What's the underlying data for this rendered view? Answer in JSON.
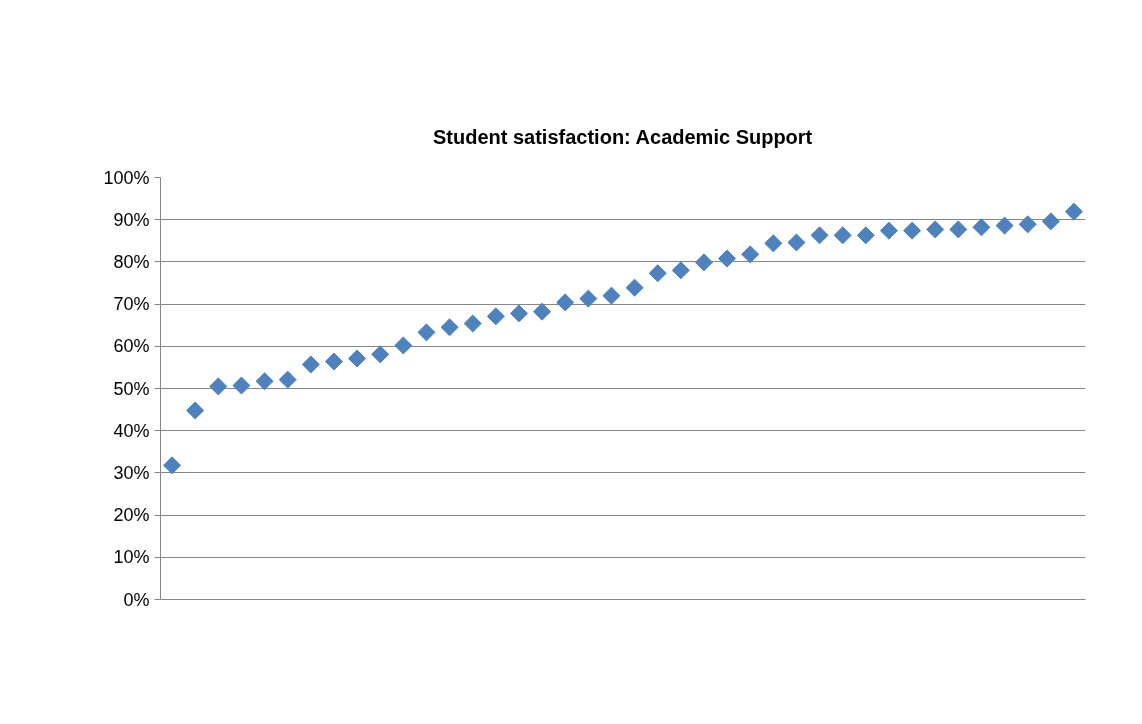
{
  "chart_data": {
    "type": "scatter",
    "title": "Student satisfaction: Academic Support",
    "categories": [
      null,
      null,
      null,
      null,
      null,
      null,
      null,
      null,
      null,
      null,
      null,
      null,
      null,
      null,
      null,
      null,
      null,
      null,
      null,
      null,
      null,
      null,
      null,
      null,
      null,
      null,
      null,
      null,
      null,
      null,
      null,
      null,
      null,
      null,
      null,
      null,
      null,
      null,
      null,
      null
    ],
    "series": [
      {
        "color": "#4f81bd",
        "values": [
          31.8,
          44.8,
          50.5,
          50.7,
          51.7,
          52.1,
          55.7,
          56.4,
          57.1,
          58.1,
          60.2,
          63.3,
          64.5,
          65.4,
          67.1,
          67.8,
          68.2,
          70.4,
          71.3,
          72.0,
          73.9,
          77.3,
          78.0,
          79.9,
          80.8,
          81.8,
          84.4,
          84.6,
          86.3,
          86.3,
          86.3,
          87.4,
          87.4,
          87.7,
          87.7,
          88.2,
          88.6,
          88.9,
          89.6,
          91.9
        ]
      }
    ],
    "ylim": [
      0,
      100
    ],
    "yticks": [
      {
        "value": 0,
        "label": "0%"
      },
      {
        "value": 10,
        "label": "10%"
      },
      {
        "value": 20,
        "label": "20%"
      },
      {
        "value": 30,
        "label": "30%"
      },
      {
        "value": 40,
        "label": "40%"
      },
      {
        "value": 50,
        "label": "50%"
      },
      {
        "value": 60,
        "label": "60%"
      },
      {
        "value": 70,
        "label": "70%"
      },
      {
        "value": 80,
        "label": "80%"
      },
      {
        "value": 90,
        "label": "90%"
      },
      {
        "value": 100,
        "label": "100%"
      }
    ],
    "grid": "y",
    "marker": "diamond",
    "tick_labels": "y"
  }
}
